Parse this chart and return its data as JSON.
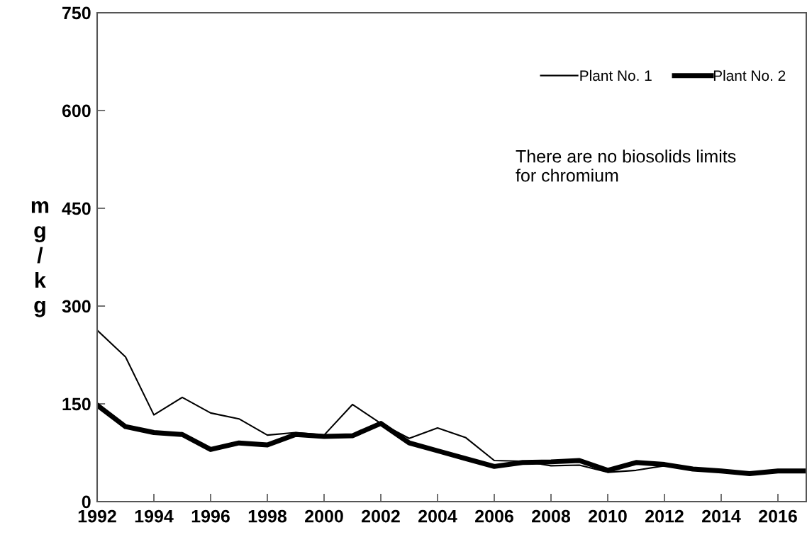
{
  "chart_data": {
    "type": "line",
    "x": [
      1992,
      1993,
      1994,
      1995,
      1996,
      1997,
      1998,
      1999,
      2000,
      2001,
      2002,
      2003,
      2004,
      2005,
      2006,
      2007,
      2008,
      2009,
      2010,
      2011,
      2012,
      2013,
      2014,
      2015,
      2016,
      2017
    ],
    "series": [
      {
        "name": "Plant No. 1",
        "color": "#000000",
        "values": [
          263,
          222,
          133,
          160,
          136,
          127,
          102,
          106,
          102,
          149,
          120,
          97,
          113,
          98,
          63,
          62,
          55,
          56,
          45,
          48,
          55,
          50,
          46,
          45,
          46,
          46
        ]
      },
      {
        "name": "Plant No. 2",
        "color": "#000000",
        "values": [
          148,
          115,
          106,
          103,
          80,
          90,
          87,
          103,
          100,
          101,
          120,
          90,
          78,
          66,
          54,
          60,
          61,
          63,
          48,
          60,
          57,
          50,
          47,
          43,
          47,
          47
        ]
      }
    ],
    "ylabel": "mg/kg",
    "annotations": [
      "There are no biosolids limits\nfor chromium"
    ],
    "xlim": [
      1992,
      2017
    ],
    "xticks": [
      1992,
      1994,
      1996,
      1998,
      2000,
      2002,
      2004,
      2006,
      2008,
      2010,
      2012,
      2014,
      2016
    ],
    "ylim": [
      0,
      750
    ],
    "yticks": [
      0,
      150,
      300,
      450,
      600,
      750
    ],
    "grid": false,
    "legend": "top right",
    "marker": "none",
    "line_style": "solid"
  }
}
